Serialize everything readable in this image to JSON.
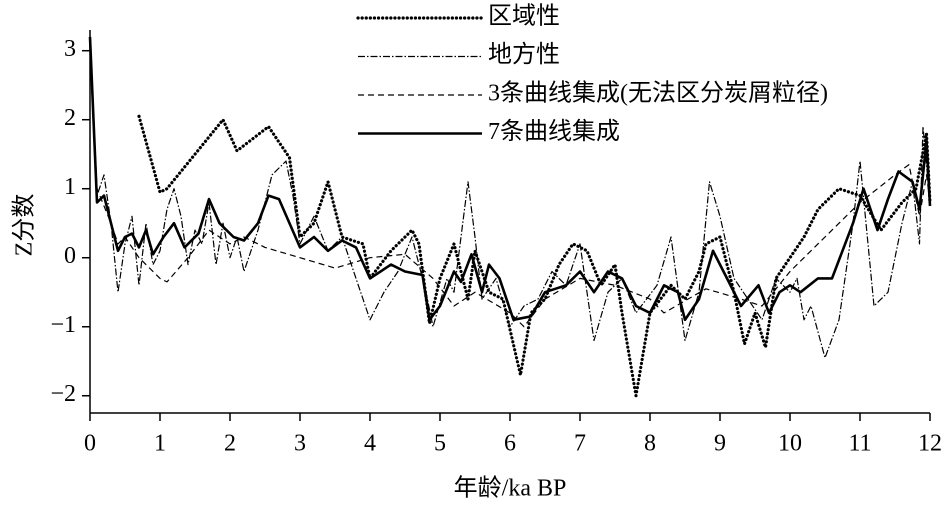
{
  "chart_data": {
    "type": "line",
    "xlabel": "年龄/ka BP",
    "ylabel": "Z分数",
    "xlim": [
      0,
      12
    ],
    "ylim": [
      -2.25,
      3.3
    ],
    "xticks": [
      0,
      1,
      2,
      3,
      4,
      5,
      6,
      7,
      8,
      9,
      10,
      11,
      12
    ],
    "yticks": [
      {
        "value": -2,
        "label": "−2"
      },
      {
        "value": -1,
        "label": "−1"
      },
      0,
      1,
      2,
      3
    ],
    "legend": "top",
    "series": [
      {
        "name": "区域性",
        "color": "#000000",
        "linestyle": "dotted",
        "x": [
          0.7,
          1.0,
          1.1,
          1.9,
          2.1,
          2.55,
          2.85,
          3.0,
          3.2,
          3.4,
          3.6,
          3.9,
          4.0,
          4.3,
          4.6,
          4.7,
          4.85,
          5.0,
          5.2,
          5.4,
          5.5,
          5.7,
          5.9,
          6.15,
          6.3,
          6.5,
          6.7,
          6.9,
          7.1,
          7.3,
          7.5,
          7.6,
          7.8,
          8.0,
          8.3,
          8.5,
          8.7,
          8.8,
          9.0,
          9.2,
          9.35,
          9.5,
          9.65,
          9.8,
          10.0,
          10.2,
          10.4,
          10.7,
          11.0,
          11.3,
          11.6,
          11.8,
          11.95,
          12.0
        ],
        "values": [
          2.05,
          0.95,
          1.0,
          2.0,
          1.55,
          1.9,
          1.45,
          0.3,
          0.5,
          1.1,
          0.3,
          0.2,
          -0.3,
          0.1,
          0.4,
          0.2,
          -0.95,
          -0.3,
          0.2,
          -0.6,
          0.1,
          -0.5,
          -0.6,
          -1.7,
          -0.8,
          -0.6,
          -0.1,
          0.2,
          0.1,
          -0.4,
          -0.1,
          -0.8,
          -2.0,
          -0.8,
          -0.4,
          -0.6,
          -0.2,
          0.2,
          0.3,
          -0.5,
          -1.25,
          -0.8,
          -1.3,
          -0.3,
          0.0,
          0.3,
          0.7,
          1.0,
          0.9,
          0.4,
          0.8,
          1.0,
          1.8,
          0.8
        ]
      },
      {
        "name": "地方性",
        "color": "#000000",
        "linestyle": "dashdot",
        "x": [
          0,
          0.1,
          0.2,
          0.3,
          0.4,
          0.5,
          0.6,
          0.7,
          0.8,
          0.9,
          1.0,
          1.1,
          1.2,
          1.3,
          1.4,
          1.5,
          1.6,
          1.7,
          1.8,
          1.9,
          2.0,
          2.1,
          2.2,
          2.4,
          2.6,
          2.8,
          2.9,
          3.0,
          3.2,
          3.4,
          3.6,
          3.8,
          4.0,
          4.2,
          4.4,
          4.6,
          4.8,
          4.9,
          5.1,
          5.2,
          5.4,
          5.5,
          5.6,
          5.8,
          6.0,
          6.2,
          6.4,
          6.6,
          6.8,
          7.0,
          7.2,
          7.4,
          7.6,
          7.8,
          8.1,
          8.3,
          8.5,
          8.7,
          8.85,
          9.0,
          9.2,
          9.4,
          9.6,
          9.8,
          10.0,
          10.1,
          10.2,
          10.3,
          10.5,
          10.7,
          10.9,
          11.0,
          11.2,
          11.4,
          11.6,
          11.75,
          11.85,
          11.9,
          12.0
        ],
        "values": [
          3.2,
          0.9,
          1.2,
          0.5,
          -0.5,
          0.2,
          0.6,
          -0.4,
          0.5,
          -0.1,
          0.1,
          0.7,
          1.0,
          0.6,
          -0.1,
          0.4,
          0.2,
          0.8,
          -0.1,
          0.5,
          0.0,
          0.3,
          -0.2,
          0.4,
          1.2,
          1.4,
          0.9,
          0.2,
          0.6,
          0.1,
          0.3,
          -0.3,
          -0.9,
          -0.5,
          -0.2,
          0.3,
          -0.5,
          -1.0,
          -0.3,
          -0.5,
          1.1,
          0.3,
          -0.6,
          -0.3,
          -1.0,
          -0.7,
          -0.6,
          -0.2,
          -0.4,
          0.2,
          -1.2,
          -0.5,
          -0.3,
          -0.8,
          -0.4,
          0.3,
          -1.2,
          -0.5,
          1.1,
          0.6,
          -0.3,
          -0.6,
          -0.9,
          -0.3,
          -0.5,
          -0.3,
          -0.9,
          -0.7,
          -1.45,
          -0.9,
          0.5,
          1.4,
          -0.7,
          -0.5,
          0.5,
          1.1,
          0.2,
          1.9,
          0.8
        ]
      },
      {
        "name": "3条曲线集成(无法区分炭屑粒径)",
        "color": "#000000",
        "linestyle": "dashed",
        "x": [
          0,
          0.1,
          0.3,
          0.4,
          0.5,
          0.7,
          1.0,
          1.1,
          1.4,
          1.7,
          2.0,
          2.2,
          2.5,
          3.0,
          3.5,
          4.0,
          4.5,
          4.9,
          5.2,
          5.5,
          6.0,
          6.2,
          6.5,
          7.0,
          7.5,
          8.0,
          8.2,
          8.8,
          9.3,
          9.6,
          10.0,
          10.5,
          11.0,
          11.5,
          11.7,
          11.85,
          11.95,
          12.0
        ],
        "values": [
          3.2,
          1.0,
          0.5,
          0.2,
          0.3,
          0.0,
          -0.3,
          -0.35,
          0.0,
          0.4,
          0.2,
          0.3,
          0.15,
          0.0,
          -0.15,
          0.0,
          0.05,
          -0.3,
          -0.7,
          -0.5,
          -0.8,
          -1.0,
          -0.6,
          -0.3,
          -0.4,
          -0.6,
          -0.8,
          -0.45,
          -0.6,
          -0.7,
          -0.2,
          0.3,
          0.8,
          1.2,
          1.35,
          0.6,
          1.2,
          0.8
        ]
      },
      {
        "name": "7条曲线集成",
        "color": "#000000",
        "linestyle": "solid",
        "x": [
          0,
          0.1,
          0.2,
          0.3,
          0.4,
          0.5,
          0.6,
          0.7,
          0.8,
          0.9,
          1.05,
          1.2,
          1.35,
          1.55,
          1.7,
          1.85,
          2.05,
          2.2,
          2.4,
          2.55,
          2.7,
          3.0,
          3.2,
          3.4,
          3.6,
          3.8,
          4.0,
          4.3,
          4.5,
          4.75,
          4.85,
          5.0,
          5.2,
          5.3,
          5.45,
          5.6,
          5.7,
          5.85,
          6.05,
          6.3,
          6.5,
          6.8,
          7.0,
          7.2,
          7.4,
          7.6,
          7.8,
          8.0,
          8.2,
          8.4,
          8.5,
          8.7,
          8.9,
          9.1,
          9.3,
          9.55,
          9.7,
          9.85,
          10.0,
          10.15,
          10.4,
          10.6,
          10.9,
          11.05,
          11.25,
          11.4,
          11.55,
          11.75,
          11.85,
          11.95,
          12.0
        ],
        "values": [
          3.2,
          0.8,
          0.9,
          0.5,
          0.1,
          0.3,
          0.35,
          0.15,
          0.4,
          0.05,
          0.3,
          0.5,
          0.15,
          0.35,
          0.85,
          0.5,
          0.3,
          0.25,
          0.5,
          0.9,
          0.85,
          0.15,
          0.3,
          0.1,
          0.25,
          0.15,
          -0.3,
          -0.1,
          -0.2,
          -0.25,
          -0.9,
          -0.7,
          -0.2,
          -0.35,
          0.05,
          -0.5,
          -0.1,
          -0.3,
          -0.9,
          -0.85,
          -0.5,
          -0.4,
          -0.2,
          -0.5,
          -0.2,
          -0.3,
          -0.7,
          -0.8,
          -0.4,
          -0.5,
          -0.9,
          -0.6,
          0.1,
          -0.3,
          -0.7,
          -0.4,
          -0.8,
          -0.5,
          -0.4,
          -0.5,
          -0.3,
          -0.3,
          0.5,
          1.0,
          0.4,
          0.85,
          1.25,
          1.1,
          0.7,
          1.7,
          0.75
        ]
      }
    ]
  }
}
